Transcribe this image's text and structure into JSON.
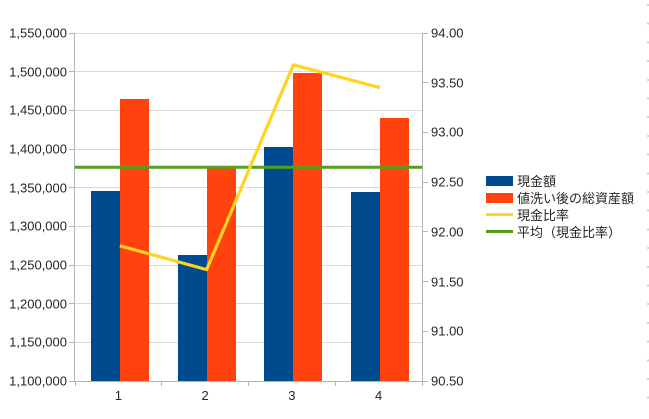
{
  "chart_data": {
    "type": "combo",
    "title": "",
    "categories": [
      "1",
      "2",
      "3",
      "4"
    ],
    "series": [
      {
        "key": "cash",
        "name": "現金額",
        "type": "bar",
        "axis": "left",
        "color": "#004b8d",
        "values": [
          1346000,
          1263000,
          1403000,
          1345000
        ]
      },
      {
        "key": "assets",
        "name": "値洗い後の総資産額",
        "type": "bar",
        "axis": "left",
        "color": "#ff420e",
        "values": [
          1465000,
          1377000,
          1498000,
          1440000
        ]
      },
      {
        "key": "cash-ratio",
        "name": "現金比率",
        "type": "line",
        "axis": "right",
        "color": "#ffd320",
        "values": [
          91.86,
          91.62,
          93.68,
          93.45
        ]
      },
      {
        "key": "average",
        "name": "平均（現金比率）",
        "type": "constant-line",
        "axis": "right",
        "color": "#579d1c",
        "values": [
          92.65,
          92.65,
          92.65,
          92.65
        ]
      }
    ],
    "axis_left": {
      "min": 1100000,
      "max": 1550000,
      "step": 50000,
      "tick_labels": [
        "1,550,000",
        "1,500,000",
        "1,450,000",
        "1,400,000",
        "1,350,000",
        "1,300,000",
        "1,250,000",
        "1,200,000",
        "1,150,000",
        "1,100,000"
      ]
    },
    "axis_right": {
      "min": 90.5,
      "max": 94.0,
      "step": 0.5,
      "tick_labels": [
        "94.00",
        "93.50",
        "93.00",
        "92.50",
        "92.00",
        "91.50",
        "91.00",
        "90.50"
      ]
    },
    "x_axis": {
      "tick_labels": [
        "1",
        "2",
        "3",
        "4"
      ]
    },
    "grid": true,
    "legend_position": "right",
    "colors": {
      "grid": "#d9d9d9",
      "axis": "#b3b3b3",
      "text": "#262626",
      "background": "#ffffff"
    }
  }
}
